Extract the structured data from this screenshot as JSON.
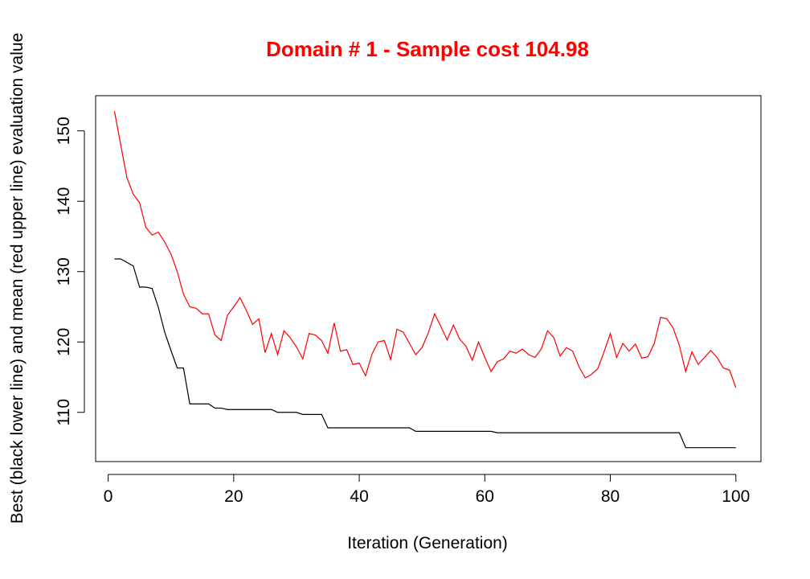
{
  "chart_data": {
    "type": "line",
    "title": "Domain # 1  - Sample cost 104.98",
    "title_color": "#ff0000",
    "xlabel": "Iteration (Generation)",
    "ylabel": "Best (black lower line) and mean (red upper line) evaluation value",
    "xlim": [
      -2,
      104
    ],
    "ylim": [
      103,
      155
    ],
    "xticks": [
      0,
      20,
      40,
      60,
      80,
      100
    ],
    "yticks": [
      110,
      120,
      130,
      140,
      150
    ],
    "grid": false,
    "x": [
      1,
      2,
      3,
      4,
      5,
      6,
      7,
      8,
      9,
      10,
      11,
      12,
      13,
      14,
      15,
      16,
      17,
      18,
      19,
      20,
      21,
      22,
      23,
      24,
      25,
      26,
      27,
      28,
      29,
      30,
      31,
      32,
      33,
      34,
      35,
      36,
      37,
      38,
      39,
      40,
      41,
      42,
      43,
      44,
      45,
      46,
      47,
      48,
      49,
      50,
      51,
      52,
      53,
      54,
      55,
      56,
      57,
      58,
      59,
      60,
      61,
      62,
      63,
      64,
      65,
      66,
      67,
      68,
      69,
      70,
      71,
      72,
      73,
      74,
      75,
      76,
      77,
      78,
      79,
      80,
      81,
      82,
      83,
      84,
      85,
      86,
      87,
      88,
      89,
      90,
      91,
      92,
      93,
      94,
      95,
      96,
      97,
      98,
      99,
      100
    ],
    "series": [
      {
        "color": "#ff0000",
        "values": [
          152.8,
          148.0,
          143.3,
          141.0,
          139.8,
          136.3,
          135.2,
          135.6,
          134.2,
          132.5,
          130.0,
          126.8,
          125.0,
          124.8,
          124.0,
          124.0,
          121.0,
          120.2,
          123.8,
          125.0,
          126.3,
          124.5,
          122.5,
          123.3,
          118.5,
          121.2,
          118.2,
          121.6,
          120.6,
          119.3,
          117.6,
          121.2,
          121.0,
          120.2,
          118.4,
          122.7,
          118.7,
          118.9,
          116.8,
          117.0,
          115.2,
          118.2,
          120.0,
          120.2,
          117.5,
          121.8,
          121.4,
          119.8,
          118.2,
          119.2,
          121.3,
          124.0,
          122.2,
          120.3,
          122.4,
          120.4,
          119.4,
          117.4,
          120.0,
          117.8,
          115.8,
          117.2,
          117.6,
          118.7,
          118.4,
          119.0,
          118.2,
          117.8,
          119.0,
          121.6,
          120.6,
          118.0,
          119.2,
          118.7,
          116.5,
          114.9,
          115.4,
          116.2,
          118.6,
          121.2,
          117.8,
          119.8,
          118.7,
          119.7,
          117.7,
          117.9,
          119.8,
          123.5,
          123.3,
          122.0,
          119.5,
          115.8,
          118.6,
          116.8,
          117.8,
          118.8,
          117.8,
          116.3,
          116.0,
          113.5
        ]
      },
      {
        "color": "#000000",
        "values": [
          131.8,
          131.8,
          131.3,
          130.8,
          127.8,
          127.8,
          127.6,
          124.9,
          121.4,
          118.8,
          116.3,
          116.3,
          111.2,
          111.2,
          111.2,
          111.2,
          110.6,
          110.6,
          110.4,
          110.4,
          110.4,
          110.4,
          110.4,
          110.4,
          110.4,
          110.4,
          110.0,
          110.0,
          110.0,
          110.0,
          109.7,
          109.7,
          109.7,
          109.7,
          107.8,
          107.8,
          107.8,
          107.8,
          107.8,
          107.8,
          107.8,
          107.8,
          107.8,
          107.8,
          107.8,
          107.8,
          107.8,
          107.8,
          107.3,
          107.3,
          107.3,
          107.3,
          107.3,
          107.3,
          107.3,
          107.3,
          107.3,
          107.3,
          107.3,
          107.3,
          107.3,
          107.1,
          107.1,
          107.1,
          107.1,
          107.1,
          107.1,
          107.1,
          107.1,
          107.1,
          107.1,
          107.1,
          107.1,
          107.1,
          107.1,
          107.1,
          107.1,
          107.1,
          107.1,
          107.1,
          107.1,
          107.1,
          107.1,
          107.1,
          107.1,
          107.1,
          107.1,
          107.1,
          107.1,
          107.1,
          107.1,
          104.98,
          104.98,
          104.98,
          104.98,
          104.98,
          104.98,
          104.98,
          104.98,
          104.98
        ]
      }
    ]
  }
}
